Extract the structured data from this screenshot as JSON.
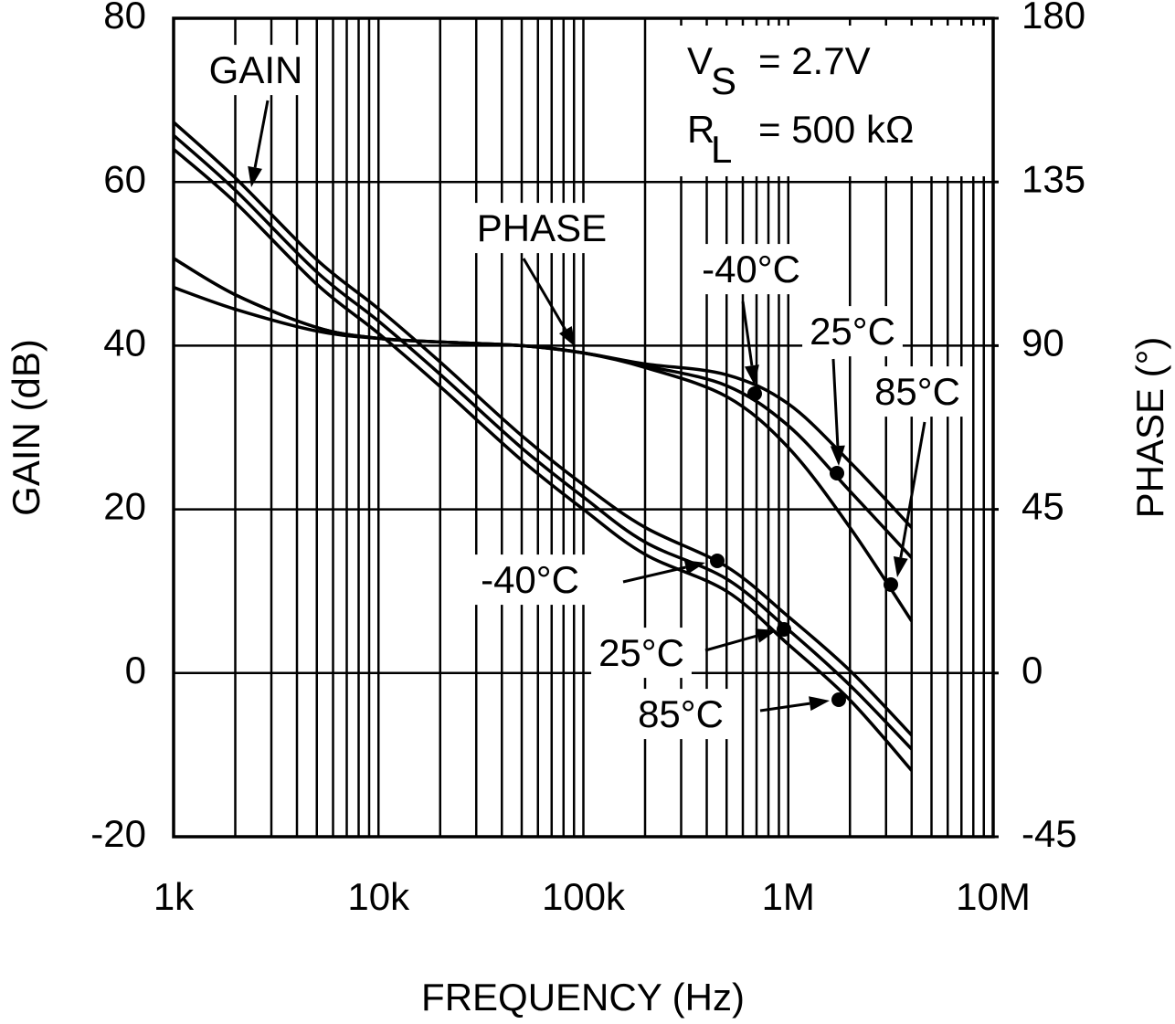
{
  "chart_data": {
    "type": "line",
    "x_label": "FREQUENCY (Hz)",
    "y_label": "GAIN (dB)",
    "y2_label": "PHASE (°)",
    "log_x": true,
    "grid": true,
    "color": "#000000",
    "xlim": [
      1000,
      10000000
    ],
    "xticks": [
      {
        "value": 1000,
        "label": "1k"
      },
      {
        "value": 10000,
        "label": "10k"
      },
      {
        "value": 100000,
        "label": "100k"
      },
      {
        "value": 1000000,
        "label": "1M"
      },
      {
        "value": 10000000,
        "label": "10M"
      }
    ],
    "ylim": [
      -20,
      80
    ],
    "yticks": [
      -20,
      0,
      20,
      40,
      60,
      80
    ],
    "y2lim": [
      -45,
      180
    ],
    "y2ticks": [
      -45,
      0,
      45,
      90,
      135,
      180
    ],
    "x": [
      1000,
      2000,
      5000,
      10000,
      20000,
      50000,
      100000,
      200000,
      500000,
      1000000,
      2000000,
      4000000
    ],
    "series": [
      {
        "color": "#000000",
        "values": [
          67.3,
          60.5,
          50.5,
          44.5,
          38,
          29,
          23,
          17.8,
          13,
          6.9,
          0.3,
          -7.6
        ]
      },
      {
        "color": "#000000",
        "values": [
          65.7,
          59,
          49,
          43,
          36.5,
          27.5,
          21.5,
          16,
          11.5,
          5.3,
          -1.5,
          -9.3
        ]
      },
      {
        "color": "#000000",
        "values": [
          64,
          57.5,
          47.5,
          41.5,
          35,
          26,
          20,
          14.5,
          10,
          3.5,
          -3.3,
          -11.9
        ]
      },
      {
        "color": "#000000",
        "axis": "y2",
        "values": [
          114,
          104,
          95,
          92,
          91,
          90,
          88,
          85,
          82,
          74,
          58,
          40
        ]
      },
      {
        "color": "#000000",
        "axis": "y2",
        "values": [
          114,
          104,
          95,
          92,
          91,
          90,
          88,
          84.5,
          79,
          68,
          50,
          31.7
        ]
      },
      {
        "color": "#000000",
        "axis": "y2",
        "values": [
          106,
          100,
          94,
          92,
          91,
          90,
          88,
          84,
          76,
          62,
          40,
          14.3
        ]
      }
    ],
    "annotations": [
      "GAIN",
      "PHASE",
      "-40°C",
      "25°C",
      "85°C",
      "-40°C",
      "25°C",
      "85°C"
    ],
    "conditions": [
      {
        "symbol": "V",
        "subscript": "S",
        "text": "=  2.7V"
      },
      {
        "symbol": "R",
        "subscript": "L",
        "text": "=  500 kΩ"
      }
    ]
  }
}
